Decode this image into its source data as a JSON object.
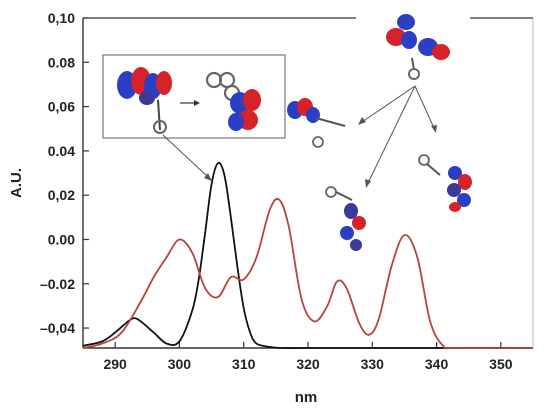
{
  "chart_data": {
    "type": "line",
    "title": "",
    "xlabel": "nm",
    "ylabel": "A.U.",
    "xlim": [
      285,
      355
    ],
    "ylim": [
      -0.049,
      0.1
    ],
    "x_ticks": [
      290,
      300,
      310,
      320,
      330,
      340,
      350
    ],
    "x_tick_labels": [
      "290",
      "300",
      "310",
      "320",
      "330",
      "340",
      "350"
    ],
    "y_ticks": [
      -0.04,
      -0.02,
      0.0,
      0.02,
      0.04,
      0.06,
      0.08,
      0.1
    ],
    "y_tick_labels": [
      "–0,04",
      "–0.02",
      "0.00",
      "0,02",
      "0.04",
      "0,06",
      "0.08",
      "0,10"
    ],
    "grid": false,
    "series": [
      {
        "color": "#111111",
        "x": [
          285,
          288,
          290,
          292,
          293,
          294,
          296,
          298,
          300,
          302,
          303,
          304,
          305,
          306,
          307,
          308,
          309,
          310,
          311,
          312,
          314,
          316,
          320,
          330,
          340,
          355
        ],
        "y": [
          -0.048,
          -0.046,
          -0.042,
          -0.037,
          -0.0355,
          -0.037,
          -0.042,
          -0.047,
          -0.046,
          -0.032,
          -0.018,
          0.003,
          0.025,
          0.0345,
          0.029,
          0.01,
          -0.012,
          -0.031,
          -0.042,
          -0.047,
          -0.0485,
          -0.049,
          -0.049,
          -0.049,
          -0.049,
          -0.049
        ]
      },
      {
        "color": "#b5453a",
        "x": [
          285,
          288,
          291,
          294,
          296,
          298,
          300,
          302,
          304,
          306,
          308,
          310,
          312,
          314,
          315.5,
          317,
          319,
          321,
          323,
          324.5,
          326,
          328,
          329.5,
          331,
          333,
          335,
          337,
          339,
          341,
          343,
          355
        ],
        "y": [
          -0.049,
          -0.047,
          -0.042,
          -0.028,
          -0.017,
          -0.008,
          0.0,
          -0.006,
          -0.022,
          -0.026,
          -0.017,
          -0.018,
          -0.008,
          0.013,
          0.018,
          0.006,
          -0.027,
          -0.037,
          -0.03,
          -0.019,
          -0.022,
          -0.038,
          -0.043,
          -0.036,
          -0.012,
          0.002,
          -0.008,
          -0.037,
          -0.048,
          -0.049,
          -0.049
        ]
      }
    ],
    "annotations": [
      "HOMO/LUMO orbital structure inset (boxed) with arrow to the black 306 nm band",
      "orbital structures with arrows pointing to the red absorption bands"
    ]
  }
}
